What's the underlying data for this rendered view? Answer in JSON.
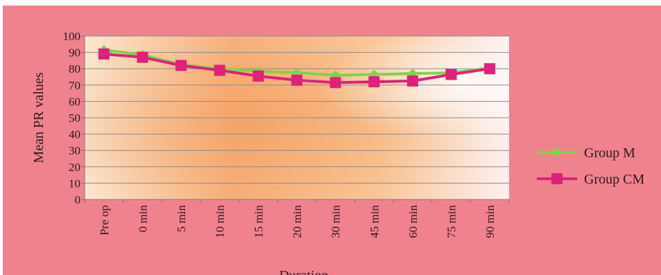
{
  "chart_data": {
    "type": "line",
    "title": "",
    "xlabel": "Duration",
    "ylabel": "Mean PR values",
    "categories": [
      "Pre op",
      "0 min",
      "5 min",
      "10 min",
      "15 min",
      "20 min",
      "30 min",
      "45 min",
      "60 min",
      "75 min",
      "90 min"
    ],
    "ylim": [
      0,
      100
    ],
    "yticks": [
      0,
      10,
      20,
      30,
      40,
      50,
      60,
      70,
      80,
      90,
      100
    ],
    "grid": true,
    "legend_position": "right",
    "series": [
      {
        "name": "Group M",
        "color": "#7ed44a",
        "marker": "diamond",
        "values": [
          91.5,
          88.5,
          82.5,
          80,
          78.5,
          77.5,
          76,
          76.5,
          77,
          77.5,
          80.5
        ]
      },
      {
        "name": "Group CM",
        "color": "#e0207a",
        "marker": "square",
        "values": [
          89,
          87,
          82,
          79,
          75.5,
          73,
          71.5,
          72,
          72.5,
          76.5,
          80
        ]
      }
    ]
  }
}
